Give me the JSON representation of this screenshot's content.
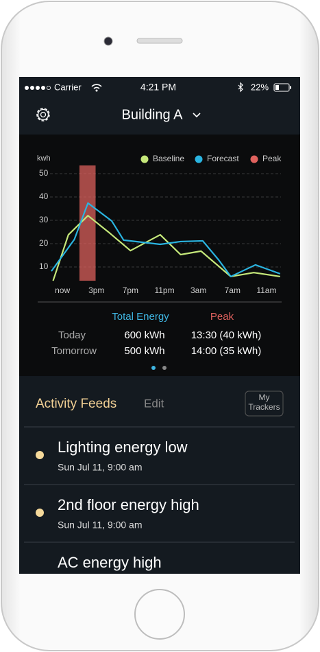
{
  "status_bar": {
    "carrier": "Carrier",
    "time": "4:21 PM",
    "battery": "22%"
  },
  "header": {
    "title": "Building A"
  },
  "chart_data": {
    "type": "line",
    "y_label": "kwh",
    "ylim": [
      0,
      55
    ],
    "yticks": [
      10,
      20,
      30,
      40,
      50
    ],
    "xlim": [
      -1.3,
      25.7
    ],
    "xticks": [
      {
        "value": 0,
        "label": "now"
      },
      {
        "value": 4,
        "label": "3pm"
      },
      {
        "value": 8,
        "label": "7pm"
      },
      {
        "value": 12,
        "label": "11pm"
      },
      {
        "value": 16,
        "label": "3am"
      },
      {
        "value": 20,
        "label": "7am"
      },
      {
        "value": 24,
        "label": "11am"
      }
    ],
    "grid": true,
    "legend": "top-right",
    "series": [
      {
        "name": "Baseline",
        "color": "#c5e87a",
        "x": [
          -1.1,
          0.7,
          3,
          5.6,
          8,
          11.5,
          13.9,
          16.3,
          19.8,
          22.5,
          25.6
        ],
        "values": [
          4.1,
          23.8,
          32,
          24.4,
          17,
          23.8,
          15.3,
          16.8,
          5.9,
          7.6,
          5.9
        ]
      },
      {
        "name": "Forecast",
        "color": "#2ab4e0",
        "x": [
          -1.3,
          1.4,
          3,
          5.8,
          7.2,
          11.5,
          13.9,
          16.5,
          18.4,
          19.8,
          22.7,
          25.6
        ],
        "values": [
          8.2,
          21.8,
          37.4,
          29.7,
          21.5,
          19.7,
          20.9,
          21.2,
          12.9,
          5.9,
          10.9,
          7.1
        ]
      }
    ],
    "peak": {
      "name": "Peak",
      "color": "#e0625e",
      "start": 2,
      "end": 3.9,
      "low": 4.1,
      "high": 53.5
    }
  },
  "summary": {
    "headers": [
      "Total Energy",
      "Peak"
    ],
    "rows": [
      [
        "Today",
        "600 kWh",
        "13:30 (40 kWh)"
      ],
      [
        "Tomorrow",
        "500 kWh",
        "14:00 (35 kWh)"
      ]
    ]
  },
  "activity": {
    "title": "Activity Feeds",
    "edit": "Edit",
    "trackers": [
      "My",
      "Trackers"
    ],
    "items": [
      {
        "title": "Lighting energy low",
        "date": "Sun Jul 11, 9:00 am"
      },
      {
        "title": "2nd floor energy high",
        "date": "Sun Jul 11, 9:00 am"
      },
      {
        "title": "AC energy high"
      }
    ]
  }
}
